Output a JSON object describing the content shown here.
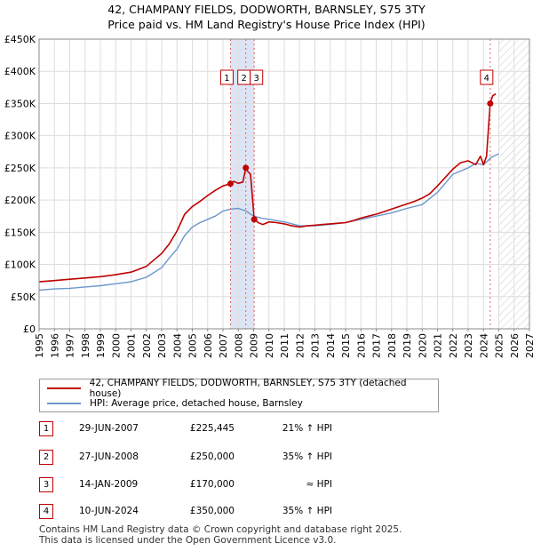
{
  "title_line1": "42, CHAMPANY FIELDS, DODWORTH, BARNSLEY, S75 3TY",
  "title_line2": "Price paid vs. HM Land Registry's House Price Index (HPI)",
  "colors": {
    "property": "#c00000",
    "hpi": "#6a96cc",
    "shade": "#dde4f4",
    "grid": "#dddddd"
  },
  "chart_data": {
    "type": "line",
    "title": "Price paid vs. HM Land Registry's House Price Index (HPI)",
    "xlim": [
      1995,
      2027
    ],
    "ylim": [
      0,
      450000
    ],
    "x_ticks": [
      "1995",
      "1996",
      "1997",
      "1998",
      "1999",
      "2000",
      "2001",
      "2002",
      "2003",
      "2004",
      "2005",
      "2006",
      "2007",
      "2008",
      "2009",
      "2010",
      "2011",
      "2012",
      "2013",
      "2014",
      "2015",
      "2016",
      "2017",
      "2018",
      "2019",
      "2020",
      "2021",
      "2022",
      "2023",
      "2024",
      "2025",
      "2026",
      "2027"
    ],
    "y_ticks": [
      {
        "value": 0,
        "label": "£0"
      },
      {
        "value": 50000,
        "label": "£50K"
      },
      {
        "value": 100000,
        "label": "£100K"
      },
      {
        "value": 150000,
        "label": "£150K"
      },
      {
        "value": 200000,
        "label": "£200K"
      },
      {
        "value": 250000,
        "label": "£250K"
      },
      {
        "value": 300000,
        "label": "£300K"
      },
      {
        "value": 350000,
        "label": "£350K"
      },
      {
        "value": 400000,
        "label": "£400K"
      },
      {
        "value": 450000,
        "label": "£450K"
      }
    ],
    "shaded_range": [
      2007.49,
      2009.04
    ],
    "hatched_from": 2025.0,
    "series": [
      {
        "name": "42, CHAMPANY FIELDS, DODWORTH, BARNSLEY, S75 3TY (detached house)",
        "color": "#c00000",
        "x": [
          1995,
          1996,
          1997,
          1998,
          1999,
          2000,
          2001,
          2002,
          2003,
          2003.5,
          2004,
          2004.5,
          2005,
          2005.5,
          2006,
          2006.5,
          2007,
          2007.49,
          2007.7,
          2008,
          2008.3,
          2008.49,
          2008.6,
          2008.8,
          2009.04,
          2009.3,
          2009.6,
          2010,
          2010.5,
          2011,
          2011.5,
          2012,
          2012.5,
          2013,
          2013.5,
          2014,
          2014.5,
          2015,
          2015.5,
          2016,
          2016.5,
          2017,
          2017.5,
          2018,
          2018.5,
          2019,
          2019.5,
          2020,
          2020.5,
          2021,
          2021.5,
          2022,
          2022.5,
          2023,
          2023.5,
          2023.8,
          2024,
          2024.2,
          2024.44,
          2024.6,
          2024.8
        ],
        "y": [
          73000,
          75000,
          77000,
          79000,
          81000,
          84000,
          88000,
          97000,
          117000,
          132000,
          152000,
          178000,
          190000,
          198000,
          207000,
          215000,
          222000,
          225445,
          229000,
          226000,
          228000,
          250000,
          245000,
          240000,
          170000,
          165000,
          162000,
          166000,
          165000,
          163000,
          160000,
          158000,
          160000,
          161000,
          162000,
          163000,
          164000,
          165000,
          168000,
          172000,
          175000,
          178000,
          182000,
          186000,
          190000,
          194000,
          198000,
          203000,
          210000,
          222000,
          235000,
          248000,
          258000,
          261000,
          255000,
          268000,
          255000,
          268000,
          350000,
          362000,
          365000
        ]
      },
      {
        "name": "HPI: Average price, detached house, Barnsley",
        "color": "#6a96cc",
        "x": [
          1995,
          1996,
          1997,
          1998,
          1999,
          2000,
          2001,
          2002,
          2003,
          2003.5,
          2004,
          2004.5,
          2005,
          2005.5,
          2006,
          2006.5,
          2007,
          2007.5,
          2008,
          2008.5,
          2009,
          2009.5,
          2010,
          2011,
          2012,
          2013,
          2014,
          2015,
          2016,
          2017,
          2018,
          2019,
          2020,
          2021,
          2022,
          2023,
          2023.5,
          2024,
          2024.5,
          2025
        ],
        "y": [
          60000,
          62000,
          63000,
          65000,
          67000,
          70000,
          73000,
          80000,
          95000,
          110000,
          124000,
          145000,
          158000,
          165000,
          170000,
          175000,
          183000,
          186000,
          187000,
          183000,
          175000,
          172000,
          170000,
          166000,
          160000,
          160000,
          162000,
          165000,
          170000,
          175000,
          180000,
          187000,
          193000,
          212000,
          240000,
          250000,
          257000,
          255000,
          266000,
          272000
        ]
      }
    ],
    "sales": [
      {
        "label": "1",
        "x": 2007.49,
        "price": 225445,
        "date": "29-JUN-2007",
        "price_text": "£225,445",
        "hpi_text": "21% ↑ HPI"
      },
      {
        "label": "2",
        "x": 2008.49,
        "price": 250000,
        "date": "27-JUN-2008",
        "price_text": "£250,000",
        "hpi_text": "35% ↑ HPI"
      },
      {
        "label": "3",
        "x": 2009.04,
        "price": 170000,
        "date": "14-JAN-2009",
        "price_text": "£170,000",
        "hpi_text": "≈ HPI"
      },
      {
        "label": "4",
        "x": 2024.44,
        "price": 350000,
        "date": "10-JUN-2024",
        "price_text": "£350,000",
        "hpi_text": "35% ↑ HPI"
      }
    ]
  },
  "legend": {
    "property": "42, CHAMPANY FIELDS, DODWORTH, BARNSLEY, S75 3TY (detached house)",
    "hpi": "HPI: Average price, detached house, Barnsley"
  },
  "footer": {
    "line1": "Contains HM Land Registry data © Crown copyright and database right 2025.",
    "line2": "This data is licensed under the Open Government Licence v3.0."
  }
}
